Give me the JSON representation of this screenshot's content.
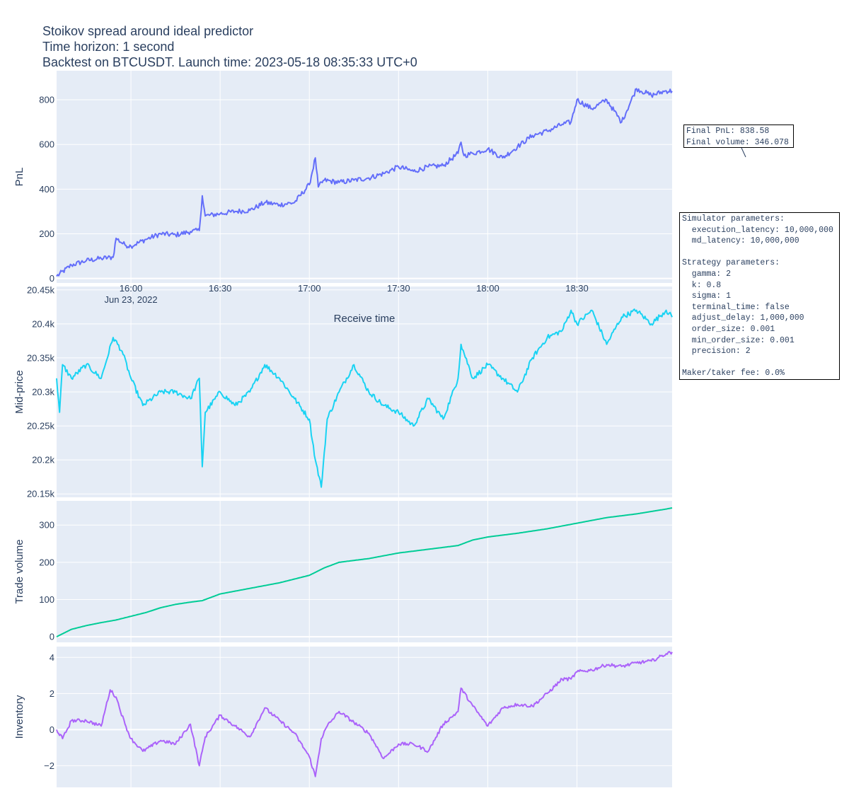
{
  "title_lines": [
    "Stoikov spread around ideal predictor",
    "Time horizon: 1 second",
    "Backtest on BTCUSDT. Launch time: 2023-05-18 08:35:33 UTC+0"
  ],
  "colors": {
    "plot_bg": "#e5ecf6",
    "grid": "#ffffff",
    "pnl": "#636efa",
    "mid": "#19d3f3",
    "volume": "#00cc96",
    "inventory": "#ab63fa"
  },
  "x_axis": {
    "title": "Receive time",
    "date_label": "Jun 23, 2022",
    "ticks": [
      "16:00",
      "16:30",
      "17:00",
      "17:30",
      "18:00",
      "18:30"
    ]
  },
  "annotations": {
    "final": "Final PnL: 838.58\nFinal volume: 346.078",
    "params": "Simulator parameters:\n  execution_latency: 10,000,000\n  md_latency: 10,000,000\n\nStrategy parameters:\n  gamma: 2\n  k: 0.8\n  sigma: 1\n  terminal_time: false\n  adjust_delay: 1,000,000\n  order_size: 0.001\n  min_order_size: 0.001\n  precision: 2\n\nMaker/taker fee: 0.0%"
  },
  "chart_data": [
    {
      "type": "line",
      "ylabel": "PnL",
      "ylim": [
        -20,
        930
      ],
      "yticks": [
        0,
        200,
        400,
        600,
        800
      ],
      "ytick_labels": [
        "0",
        "200",
        "400",
        "600",
        "800"
      ],
      "series": [
        {
          "x": [
            "15:35",
            "15:40",
            "15:45",
            "15:50",
            "15:54",
            "15:55",
            "15:58",
            "16:00",
            "16:05",
            "16:10",
            "16:15",
            "16:20",
            "16:23",
            "16:24",
            "16:25",
            "16:30",
            "16:35",
            "16:40",
            "16:45",
            "16:50",
            "16:55",
            "17:00",
            "17:02",
            "17:03",
            "17:05",
            "17:10",
            "17:15",
            "17:20",
            "17:25",
            "17:30",
            "17:35",
            "17:40",
            "17:45",
            "17:50",
            "17:51",
            "17:52",
            "17:55",
            "18:00",
            "18:05",
            "18:10",
            "18:15",
            "18:20",
            "18:25",
            "18:28",
            "18:30",
            "18:35",
            "18:40",
            "18:45",
            "18:50",
            "18:55",
            "19:00",
            "19:02"
          ],
          "y": [
            10,
            60,
            80,
            90,
            95,
            180,
            150,
            145,
            175,
            200,
            195,
            210,
            215,
            370,
            280,
            290,
            300,
            305,
            340,
            330,
            340,
            420,
            540,
            410,
            440,
            430,
            440,
            450,
            470,
            500,
            480,
            500,
            505,
            560,
            610,
            550,
            560,
            580,
            540,
            590,
            640,
            660,
            690,
            700,
            800,
            760,
            800,
            700,
            850,
            820,
            840,
            838.58
          ]
        }
      ]
    },
    {
      "type": "line",
      "ylabel": "Mid-price",
      "ylim": [
        20145,
        20455
      ],
      "yticks": [
        20150,
        20200,
        20250,
        20300,
        20350,
        20400,
        20450
      ],
      "ytick_labels": [
        "20.15k",
        "20.2k",
        "20.25k",
        "20.3k",
        "20.35k",
        "20.4k",
        "20.45k"
      ],
      "series": [
        {
          "x": [
            "15:35",
            "15:36",
            "15:37",
            "15:40",
            "15:45",
            "15:50",
            "15:54",
            "15:57",
            "16:00",
            "16:04",
            "16:10",
            "16:15",
            "16:20",
            "16:23",
            "16:24",
            "16:25",
            "16:30",
            "16:35",
            "16:40",
            "16:45",
            "16:50",
            "16:55",
            "17:00",
            "17:02",
            "17:04",
            "17:06",
            "17:10",
            "17:15",
            "17:20",
            "17:25",
            "17:30",
            "17:35",
            "17:40",
            "17:45",
            "17:50",
            "17:51",
            "17:55",
            "18:00",
            "18:05",
            "18:10",
            "18:15",
            "18:20",
            "18:25",
            "18:28",
            "18:30",
            "18:35",
            "18:40",
            "18:45",
            "18:50",
            "18:55",
            "19:00",
            "19:02"
          ],
          "y": [
            20320,
            20270,
            20340,
            20320,
            20340,
            20320,
            20380,
            20360,
            20320,
            20280,
            20300,
            20300,
            20290,
            20320,
            20190,
            20270,
            20300,
            20280,
            20300,
            20340,
            20320,
            20290,
            20260,
            20200,
            20160,
            20260,
            20300,
            20340,
            20300,
            20280,
            20270,
            20250,
            20290,
            20260,
            20320,
            20370,
            20320,
            20340,
            20320,
            20300,
            20350,
            20380,
            20390,
            20420,
            20400,
            20420,
            20370,
            20410,
            20420,
            20400,
            20420,
            20410
          ]
        }
      ]
    },
    {
      "type": "line",
      "ylabel": "Trade volume",
      "ylim": [
        -15,
        365
      ],
      "yticks": [
        0,
        100,
        200,
        300
      ],
      "ytick_labels": [
        "0",
        "100",
        "200",
        "300"
      ],
      "series": [
        {
          "x": [
            "15:35",
            "15:40",
            "15:45",
            "15:50",
            "15:55",
            "16:00",
            "16:05",
            "16:10",
            "16:15",
            "16:20",
            "16:24",
            "16:25",
            "16:30",
            "16:40",
            "16:50",
            "17:00",
            "17:05",
            "17:10",
            "17:20",
            "17:30",
            "17:40",
            "17:50",
            "17:55",
            "18:00",
            "18:10",
            "18:20",
            "18:30",
            "18:40",
            "18:50",
            "19:00",
            "19:02"
          ],
          "y": [
            0,
            20,
            30,
            38,
            45,
            55,
            65,
            78,
            87,
            93,
            97,
            100,
            115,
            130,
            145,
            165,
            185,
            200,
            210,
            225,
            235,
            245,
            260,
            268,
            278,
            290,
            305,
            320,
            330,
            343,
            346.078
          ]
        }
      ]
    },
    {
      "type": "line",
      "ylabel": "Inventory",
      "ylim": [
        -3.2,
        4.6
      ],
      "yticks": [
        -2,
        0,
        2,
        4
      ],
      "ytick_labels": [
        "−2",
        "0",
        "2",
        "4"
      ],
      "series": [
        {
          "x": [
            "15:35",
            "15:37",
            "15:40",
            "15:45",
            "15:50",
            "15:53",
            "15:55",
            "15:58",
            "16:00",
            "16:04",
            "16:10",
            "16:15",
            "16:20",
            "16:23",
            "16:25",
            "16:30",
            "16:35",
            "16:40",
            "16:45",
            "16:50",
            "16:55",
            "17:00",
            "17:02",
            "17:04",
            "17:06",
            "17:10",
            "17:15",
            "17:20",
            "17:25",
            "17:30",
            "17:35",
            "17:40",
            "17:45",
            "17:50",
            "17:51",
            "17:55",
            "18:00",
            "18:05",
            "18:10",
            "18:15",
            "18:20",
            "18:25",
            "18:28",
            "18:30",
            "18:35",
            "18:40",
            "18:45",
            "18:50",
            "18:55",
            "19:00",
            "19:02"
          ],
          "y": [
            0,
            -0.5,
            0.5,
            0.5,
            0.2,
            2.2,
            1.8,
            0.3,
            -0.5,
            -1.2,
            -0.6,
            -0.8,
            0.3,
            -2.0,
            -0.4,
            0.8,
            0.2,
            -0.4,
            1.2,
            0.5,
            -0.2,
            -1.5,
            -2.6,
            -0.5,
            0.2,
            1.0,
            0.4,
            -0.2,
            -1.6,
            -0.8,
            -0.8,
            -1.2,
            0.3,
            1.0,
            2.3,
            1.3,
            0.2,
            1.2,
            1.4,
            1.3,
            2.0,
            2.8,
            2.8,
            3.2,
            3.3,
            3.6,
            3.5,
            3.7,
            3.8,
            4.2,
            4.3
          ]
        }
      ]
    }
  ]
}
